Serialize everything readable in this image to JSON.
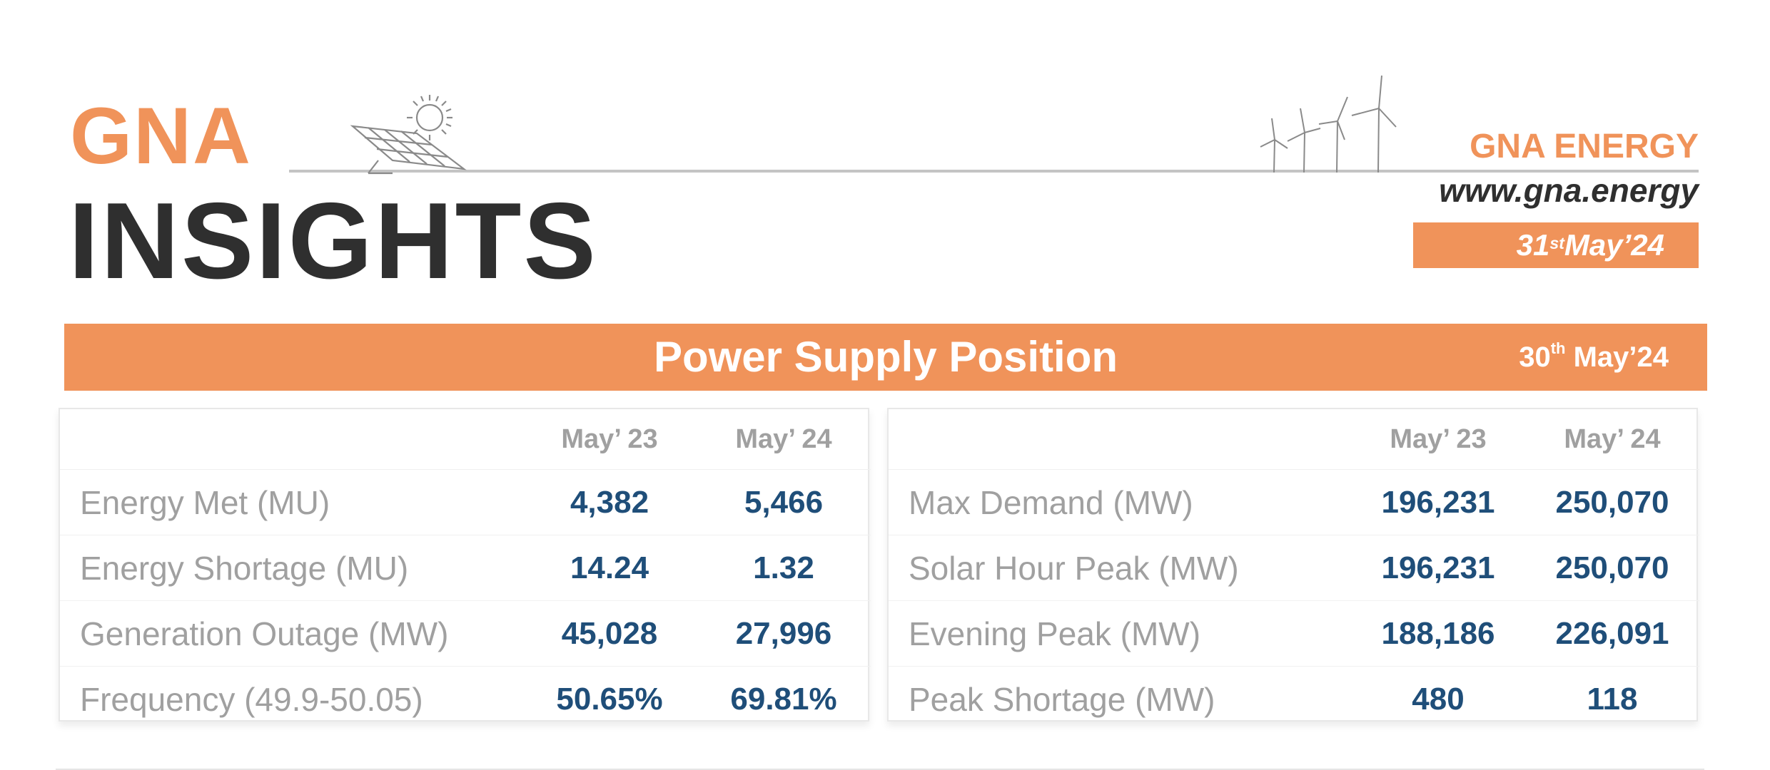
{
  "header": {
    "logo_top": "GNA",
    "logo_bottom": "INSIGHTS",
    "brand_name": "GNA ENERGY",
    "brand_url": "www.gna.energy",
    "report_date": {
      "day": "31",
      "suffix": "st",
      "rest": "May’24"
    }
  },
  "banner": {
    "title": "Power Supply Position",
    "date": {
      "day": "30",
      "suffix": "th",
      "rest": " May’24"
    }
  },
  "tables": {
    "left": {
      "columns": [
        "",
        "May’ 23",
        "May’ 24"
      ],
      "rows": [
        {
          "label": "Energy Met (MU)",
          "may23": "4,382",
          "may24": "5,466"
        },
        {
          "label": "Energy Shortage (MU)",
          "may23": "14.24",
          "may24": "1.32"
        },
        {
          "label": "Generation Outage (MW)",
          "may23": "45,028",
          "may24": "27,996"
        },
        {
          "label": "Frequency (49.9-50.05)",
          "may23": "50.65%",
          "may24": "69.81%"
        }
      ]
    },
    "right": {
      "columns": [
        "",
        "May’ 23",
        "May’ 24"
      ],
      "rows": [
        {
          "label": "Max Demand (MW)",
          "may23": "196,231",
          "may24": "250,070"
        },
        {
          "label": "Solar Hour Peak (MW)",
          "may23": "196,231",
          "may24": "250,070"
        },
        {
          "label": "Evening Peak (MW)",
          "may23": "188,186",
          "may24": "226,091"
        },
        {
          "label": "Peak Shortage (MW)",
          "may23": "480",
          "may24": "118"
        }
      ]
    }
  },
  "icons": [
    "solar-panel-icon",
    "sun-icon",
    "wind-turbine-icon"
  ],
  "colors": {
    "accent": "#f0935a",
    "value_text": "#1f4e79",
    "label_text": "#a0a0a0",
    "dark_text": "#2f2f2f"
  }
}
